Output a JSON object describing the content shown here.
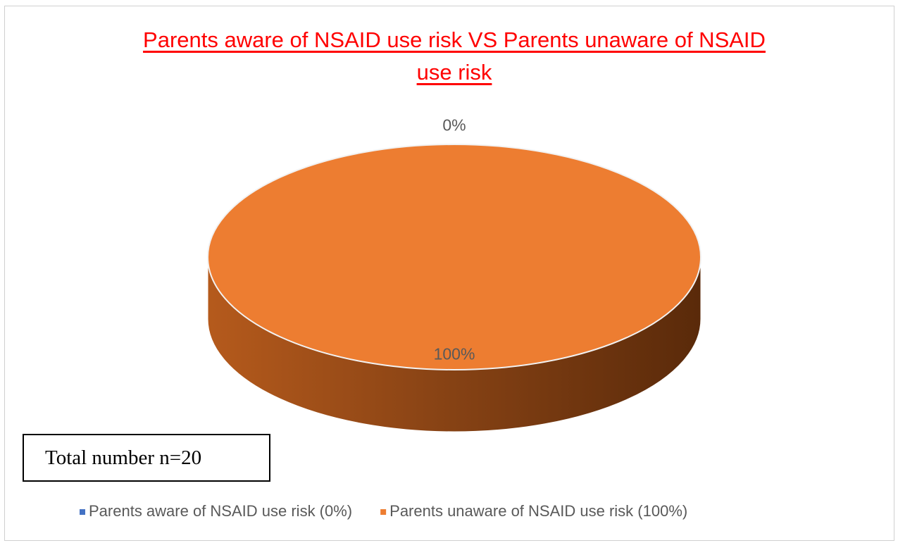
{
  "chart_data": {
    "type": "pie",
    "title": "Parents aware of NSAID use risk VS Parents unaware of NSAID use risk",
    "categories": [
      "Parents aware of NSAID use risk (0%)",
      "Parents unaware of NSAID use risk (100%)"
    ],
    "values": [
      0,
      100
    ],
    "value_labels": [
      "0%",
      "100%"
    ],
    "colors": [
      "#4472c4",
      "#ed7d31"
    ],
    "annotation": "Total number n=20",
    "legend": "bottom",
    "three_d": true
  }
}
